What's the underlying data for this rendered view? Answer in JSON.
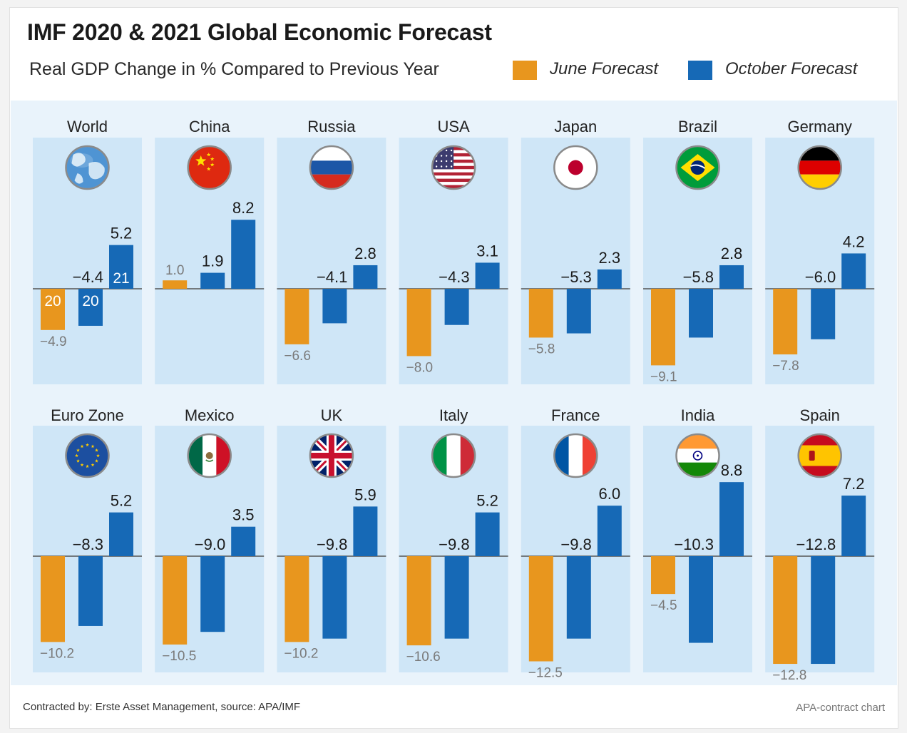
{
  "header": {
    "title": "IMF 2020 & 2021 Global Economic Forecast",
    "subtitle": "Real GDP Change in % Compared to Previous Year"
  },
  "legend": [
    {
      "label": "June Forecast",
      "color": "#E8961E"
    },
    {
      "label": "October Forecast",
      "color": "#1669B6"
    }
  ],
  "footer": {
    "source": "Contracted by: Erste Asset Management, source: APA/IMF",
    "credit": "APA-contract chart"
  },
  "colors": {
    "june": "#E8961E",
    "october": "#1669B6",
    "panel": "#cfe6f7",
    "zero_line": "#555555"
  },
  "chart_data": {
    "type": "bar",
    "ylim": [
      -14,
      9
    ],
    "series": [
      {
        "name": "June Forecast",
        "values": [
          -4.9,
          1.0,
          -6.6,
          -8.0,
          -5.8,
          -9.1,
          -7.8,
          -10.2,
          -10.5,
          -10.2,
          -10.6,
          -12.5,
          -4.5,
          -12.8
        ]
      },
      {
        "name": "October Forecast",
        "values": [
          -4.4,
          1.9,
          -4.1,
          -4.3,
          -5.3,
          -5.8,
          -6.0,
          -8.3,
          -9.0,
          -9.8,
          -9.8,
          -9.8,
          -10.3,
          -12.8
        ]
      }
    ],
    "panels": [
      {
        "country": "World",
        "icon": "globe-icon",
        "june_2020": -4.9,
        "october_2020": -4.4,
        "october_2021": 5.2,
        "labels": {
          "june_2020": "−4.9",
          "october_2020": "−4.4",
          "october_2021": "5.2"
        },
        "bar_tags": {
          "june_2020": "20",
          "october_2020": "20",
          "october_2021": "21"
        }
      },
      {
        "country": "China",
        "icon": "china-flag-icon",
        "june_2020": 1.0,
        "october_2020": 1.9,
        "october_2021": 8.2,
        "labels": {
          "june_2020": "1.0",
          "october_2020": "1.9",
          "october_2021": "8.2"
        }
      },
      {
        "country": "Russia",
        "icon": "russia-flag-icon",
        "june_2020": -6.6,
        "october_2020": -4.1,
        "october_2021": 2.8,
        "labels": {
          "june_2020": "−6.6",
          "october_2020": "−4.1",
          "october_2021": "2.8"
        }
      },
      {
        "country": "USA",
        "icon": "usa-flag-icon",
        "june_2020": -8.0,
        "october_2020": -4.3,
        "october_2021": 3.1,
        "labels": {
          "june_2020": "−8.0",
          "october_2020": "−4.3",
          "october_2021": "3.1"
        }
      },
      {
        "country": "Japan",
        "icon": "japan-flag-icon",
        "june_2020": -5.8,
        "october_2020": -5.3,
        "october_2021": 2.3,
        "labels": {
          "june_2020": "−5.8",
          "october_2020": "−5.3",
          "october_2021": "2.3"
        }
      },
      {
        "country": "Brazil",
        "icon": "brazil-flag-icon",
        "june_2020": -9.1,
        "october_2020": -5.8,
        "october_2021": 2.8,
        "labels": {
          "june_2020": "−9.1",
          "october_2020": "−5.8",
          "october_2021": "2.8"
        }
      },
      {
        "country": "Germany",
        "icon": "germany-flag-icon",
        "june_2020": -7.8,
        "october_2020": -6.0,
        "october_2021": 4.2,
        "labels": {
          "june_2020": "−7.8",
          "october_2020": "−6.0",
          "october_2021": "4.2"
        }
      },
      {
        "country": "Euro Zone",
        "icon": "eu-flag-icon",
        "june_2020": -10.2,
        "october_2020": -8.3,
        "october_2021": 5.2,
        "labels": {
          "june_2020": "−10.2",
          "october_2020": "−8.3",
          "october_2021": "5.2"
        }
      },
      {
        "country": "Mexico",
        "icon": "mexico-flag-icon",
        "june_2020": -10.5,
        "october_2020": -9.0,
        "october_2021": 3.5,
        "labels": {
          "june_2020": "−10.5",
          "october_2020": "−9.0",
          "october_2021": "3.5"
        }
      },
      {
        "country": "UK",
        "icon": "uk-flag-icon",
        "june_2020": -10.2,
        "october_2020": -9.8,
        "october_2021": 5.9,
        "labels": {
          "june_2020": "−10.2",
          "october_2020": "−9.8",
          "october_2021": "5.9"
        }
      },
      {
        "country": "Italy",
        "icon": "italy-flag-icon",
        "june_2020": -10.6,
        "october_2020": -9.8,
        "october_2021": 5.2,
        "labels": {
          "june_2020": "−10.6",
          "october_2020": "−9.8",
          "october_2021": "5.2"
        }
      },
      {
        "country": "France",
        "icon": "france-flag-icon",
        "june_2020": -12.5,
        "october_2020": -9.8,
        "october_2021": 6.0,
        "labels": {
          "june_2020": "−12.5",
          "october_2020": "−9.8",
          "october_2021": "6.0"
        }
      },
      {
        "country": "India",
        "icon": "india-flag-icon",
        "june_2020": -4.5,
        "october_2020": -10.3,
        "october_2021": 8.8,
        "labels": {
          "june_2020": "−4.5",
          "october_2020": "−10.3",
          "october_2021": "8.8"
        }
      },
      {
        "country": "Spain",
        "icon": "spain-flag-icon",
        "june_2020": -12.8,
        "october_2020": -12.8,
        "october_2021": 7.2,
        "labels": {
          "june_2020": "−12.8",
          "october_2020": "−12.8",
          "october_2021": "7.2"
        }
      }
    ]
  }
}
